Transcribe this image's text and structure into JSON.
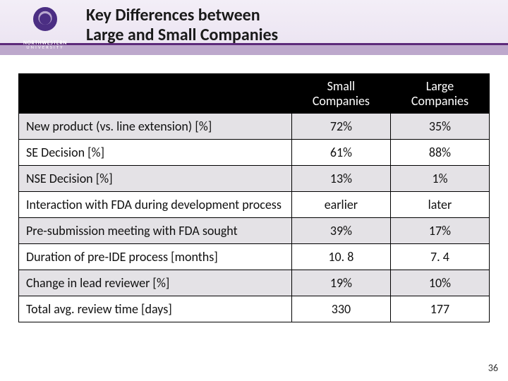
{
  "header": {
    "title_line1": "Key Differences between",
    "title_line2": "Large and Small Companies",
    "logo_wordmark_top": "NORTHWESTERN",
    "logo_wordmark_bottom": "UNIVERSITY"
  },
  "table": {
    "columns": [
      "",
      "Small Companies",
      "Large Companies"
    ],
    "col_widths_pct": [
      58,
      21,
      21
    ],
    "header_bg": "#000000",
    "header_text_color": "#ffffff",
    "row_alt_bg": "#e4e2e6",
    "row_bg": "#ffffff",
    "border_color": "#000000",
    "body_fontsize_pt": 13.5,
    "header_fontsize_pt": 13.5,
    "rows": [
      {
        "label": "New product (vs. line extension) [%]",
        "small": "72%",
        "large": "35%"
      },
      {
        "label": "SE Decision [%]",
        "small": "61%",
        "large": "88%"
      },
      {
        "label": "NSE Decision [%]",
        "small": "13%",
        "large": "1%"
      },
      {
        "label": "Interaction with FDA during development process",
        "small": "earlier",
        "large": "later"
      },
      {
        "label": "Pre-submission meeting with FDA sought",
        "small": "39%",
        "large": "17%"
      },
      {
        "label": "Duration of pre-IDE process [months]",
        "small": "10. 8",
        "large": "7. 4"
      },
      {
        "label": "Change in lead reviewer [%]",
        "small": "19%",
        "large": "10%"
      },
      {
        "label": "Total avg. review time [days]",
        "small": "330",
        "large": "177"
      }
    ]
  },
  "colors": {
    "header_gradient_top": "#f3eef7",
    "header_gradient_mid": "#ece5f2",
    "header_band_dark": "#5d2a7a",
    "header_band_light": "#bda8cc",
    "nu_purple": "#4b2e83"
  },
  "page_number": "36"
}
